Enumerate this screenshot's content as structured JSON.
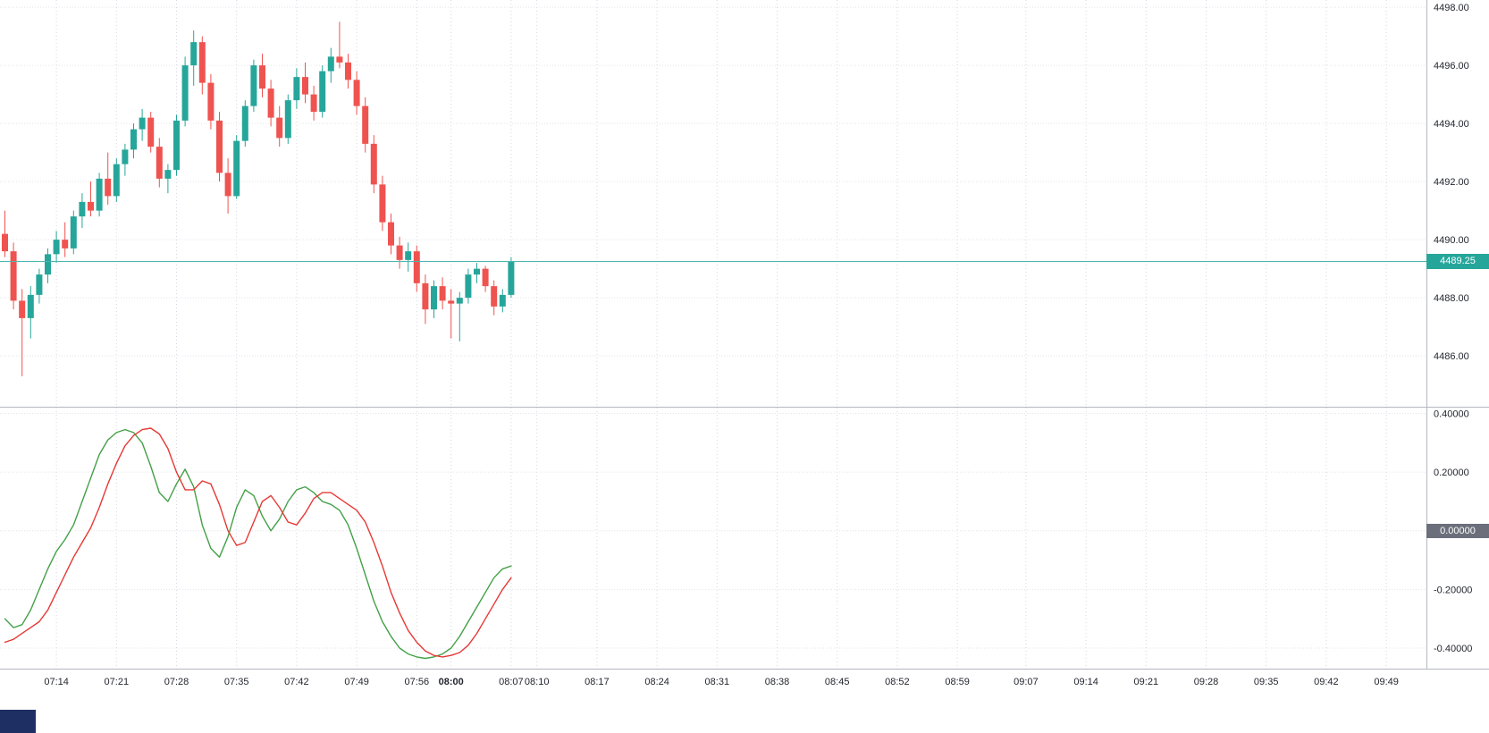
{
  "colors": {
    "up_candle": "#26a69a",
    "down_candle": "#ef5350",
    "fast_line": "#43a047",
    "slow_line": "#e53935",
    "last_price_line": "#4db6ac",
    "last_price_label_bg": "#26a69a",
    "zero_label_bg": "#6b6f7b",
    "grid_line_h": "#e2e5ec",
    "grid_line_v": "#d5d8e2",
    "separator": "#b4b7c1",
    "axis_text": "#23262f"
  },
  "labels": {
    "last_price": "4489.25",
    "zero_level": "0.00000"
  },
  "price_axis": {
    "values": [
      4498,
      4496,
      4494,
      4492,
      4490,
      4488,
      4486
    ],
    "labels": [
      "4498.00",
      "4496.00",
      "4494.00",
      "4492.00",
      "4490.00",
      "4488.00",
      "4486.00"
    ]
  },
  "indicator_axis": {
    "values": [
      0.4,
      0.2,
      0.0,
      -0.2,
      -0.4
    ],
    "labels": [
      "0.40000",
      "0.20000",
      "0.00000",
      "-0.20000",
      "-0.40000"
    ]
  },
  "time_axis": {
    "ticks": [
      {
        "label": "07:14",
        "bold": false
      },
      {
        "label": "07:21",
        "bold": false
      },
      {
        "label": "07:28",
        "bold": false
      },
      {
        "label": "07:35",
        "bold": false
      },
      {
        "label": "07:42",
        "bold": false
      },
      {
        "label": "07:49",
        "bold": false
      },
      {
        "label": "07:56",
        "bold": false
      },
      {
        "label": "08:00",
        "bold": true
      },
      {
        "label": "08:07",
        "bold": false
      },
      {
        "label": "08:10",
        "bold": false
      },
      {
        "label": "08:17",
        "bold": false
      },
      {
        "label": "08:24",
        "bold": false
      },
      {
        "label": "08:31",
        "bold": false
      },
      {
        "label": "08:38",
        "bold": false
      },
      {
        "label": "08:45",
        "bold": false
      },
      {
        "label": "08:52",
        "bold": false
      },
      {
        "label": "08:59",
        "bold": false
      },
      {
        "label": "09:07",
        "bold": false
      },
      {
        "label": "09:14",
        "bold": false
      },
      {
        "label": "09:21",
        "bold": false
      },
      {
        "label": "09:28",
        "bold": false
      },
      {
        "label": "09:35",
        "bold": false
      },
      {
        "label": "09:42",
        "bold": false
      },
      {
        "label": "09:49",
        "bold": false
      }
    ]
  },
  "chart_data": [
    {
      "type": "candlestick",
      "interval": "1m",
      "ylim": [
        4484.25,
        4498.25
      ],
      "y_ticks": [
        4486,
        4488,
        4490,
        4492,
        4494,
        4496,
        4498
      ],
      "last_price": 4489.25,
      "x": [
        "07:08",
        "07:09",
        "07:10",
        "07:11",
        "07:12",
        "07:13",
        "07:14",
        "07:15",
        "07:16",
        "07:17",
        "07:18",
        "07:19",
        "07:20",
        "07:21",
        "07:22",
        "07:23",
        "07:24",
        "07:25",
        "07:26",
        "07:27",
        "07:28",
        "07:29",
        "07:30",
        "07:31",
        "07:32",
        "07:33",
        "07:34",
        "07:35",
        "07:36",
        "07:37",
        "07:38",
        "07:39",
        "07:40",
        "07:41",
        "07:42",
        "07:43",
        "07:44",
        "07:45",
        "07:46",
        "07:47",
        "07:48",
        "07:49",
        "07:50",
        "07:51",
        "07:52",
        "07:53",
        "07:54",
        "07:55",
        "07:56",
        "07:57",
        "07:58",
        "07:59",
        "08:00",
        "08:01",
        "08:02",
        "08:03",
        "08:04",
        "08:05",
        "08:06",
        "08:07"
      ],
      "open": [
        4490.2,
        4489.6,
        4487.9,
        4487.3,
        4488.1,
        4488.8,
        4489.5,
        4490.0,
        4489.7,
        4490.8,
        4491.3,
        4491.0,
        4492.1,
        4491.5,
        4492.6,
        4493.1,
        4493.8,
        4494.2,
        4493.2,
        4492.1,
        4492.4,
        4494.1,
        4496.0,
        4496.8,
        4495.4,
        4494.1,
        4492.3,
        4491.5,
        4493.4,
        4494.6,
        4496.0,
        4495.2,
        4494.2,
        4493.5,
        4494.8,
        4495.6,
        4495.0,
        4494.4,
        4495.8,
        4496.3,
        4496.1,
        4495.5,
        4494.6,
        4493.3,
        4491.9,
        4490.6,
        4489.8,
        4489.3,
        4489.6,
        4488.5,
        4487.6,
        4488.4,
        4487.9,
        4487.8,
        4488.0,
        4488.8,
        4489.0,
        4488.4,
        4487.7,
        4488.1
      ],
      "high": [
        4491.0,
        4489.9,
        4488.3,
        4488.4,
        4489.0,
        4489.7,
        4490.3,
        4490.6,
        4491.0,
        4491.6,
        4492.0,
        4492.3,
        4493.0,
        4492.8,
        4493.3,
        4494.0,
        4494.5,
        4494.4,
        4493.5,
        4492.6,
        4494.3,
        4496.3,
        4497.2,
        4497.0,
        4495.7,
        4494.4,
        4492.8,
        4493.6,
        4494.8,
        4496.2,
        4496.4,
        4495.5,
        4494.6,
        4495.0,
        4495.9,
        4496.1,
        4495.3,
        4496.0,
        4496.6,
        4497.5,
        4496.4,
        4495.8,
        4494.9,
        4493.6,
        4492.2,
        4490.9,
        4490.1,
        4489.9,
        4489.8,
        4488.8,
        4488.6,
        4488.7,
        4488.3,
        4488.2,
        4489.0,
        4489.2,
        4489.1,
        4488.6,
        4488.3,
        4489.4
      ],
      "low": [
        4489.4,
        4487.6,
        4485.3,
        4486.6,
        4487.8,
        4488.5,
        4489.2,
        4489.4,
        4489.5,
        4490.4,
        4490.8,
        4490.8,
        4491.2,
        4491.3,
        4492.2,
        4492.8,
        4493.4,
        4493.0,
        4491.8,
        4491.6,
        4492.2,
        4493.9,
        4495.3,
        4495.0,
        4493.8,
        4492.0,
        4490.9,
        4491.4,
        4493.2,
        4494.4,
        4494.9,
        4493.9,
        4493.2,
        4493.3,
        4494.5,
        4494.7,
        4494.1,
        4494.2,
        4495.4,
        4495.9,
        4495.2,
        4494.3,
        4493.0,
        4491.6,
        4490.3,
        4489.5,
        4489.0,
        4488.9,
        4488.2,
        4487.1,
        4487.3,
        4487.6,
        4486.6,
        4486.5,
        4487.8,
        4488.5,
        4488.2,
        4487.4,
        4487.5,
        4488.0
      ],
      "close": [
        4489.6,
        4487.9,
        4487.3,
        4488.1,
        4488.8,
        4489.5,
        4490.0,
        4489.7,
        4490.8,
        4491.3,
        4491.0,
        4492.1,
        4491.5,
        4492.6,
        4493.1,
        4493.8,
        4494.2,
        4493.2,
        4492.1,
        4492.4,
        4494.1,
        4496.0,
        4496.8,
        4495.4,
        4494.1,
        4492.3,
        4491.5,
        4493.4,
        4494.6,
        4496.0,
        4495.2,
        4494.2,
        4493.5,
        4494.8,
        4495.6,
        4495.0,
        4494.4,
        4495.8,
        4496.3,
        4496.1,
        4495.5,
        4494.6,
        4493.3,
        4491.9,
        4490.6,
        4489.8,
        4489.3,
        4489.6,
        4488.5,
        4487.6,
        4488.4,
        4487.9,
        4487.8,
        4488.0,
        4488.8,
        4489.0,
        4488.4,
        4487.7,
        4488.1,
        4489.25
      ]
    },
    {
      "type": "line",
      "x_same_as_candles": true,
      "ylim": [
        -0.47,
        0.42
      ],
      "y_ticks": [
        0.4,
        0.2,
        0.0,
        -0.2,
        -0.4
      ],
      "zero_line": 0,
      "series": [
        {
          "name": "oscillator-fast",
          "color_key": "fast_line",
          "values": [
            -0.3,
            -0.33,
            -0.32,
            -0.27,
            -0.2,
            -0.13,
            -0.07,
            -0.03,
            0.02,
            0.1,
            0.18,
            0.26,
            0.31,
            0.335,
            0.345,
            0.335,
            0.3,
            0.22,
            0.13,
            0.1,
            0.16,
            0.21,
            0.15,
            0.02,
            -0.06,
            -0.09,
            -0.02,
            0.08,
            0.14,
            0.12,
            0.05,
            0.0,
            0.04,
            0.1,
            0.14,
            0.15,
            0.13,
            0.1,
            0.09,
            0.07,
            0.02,
            -0.06,
            -0.15,
            -0.24,
            -0.31,
            -0.36,
            -0.4,
            -0.42,
            -0.43,
            -0.435,
            -0.43,
            -0.42,
            -0.4,
            -0.36,
            -0.31,
            -0.26,
            -0.21,
            -0.16,
            -0.13,
            -0.12
          ]
        },
        {
          "name": "oscillator-slow",
          "color_key": "slow_line",
          "values": [
            -0.38,
            -0.37,
            -0.35,
            -0.33,
            -0.31,
            -0.27,
            -0.21,
            -0.15,
            -0.09,
            -0.04,
            0.01,
            0.08,
            0.16,
            0.23,
            0.29,
            0.325,
            0.345,
            0.35,
            0.33,
            0.28,
            0.2,
            0.14,
            0.14,
            0.17,
            0.16,
            0.09,
            0.0,
            -0.05,
            -0.04,
            0.03,
            0.1,
            0.12,
            0.08,
            0.03,
            0.02,
            0.06,
            0.11,
            0.13,
            0.13,
            0.11,
            0.09,
            0.07,
            0.03,
            -0.04,
            -0.12,
            -0.21,
            -0.28,
            -0.34,
            -0.38,
            -0.41,
            -0.425,
            -0.43,
            -0.425,
            -0.415,
            -0.39,
            -0.35,
            -0.3,
            -0.25,
            -0.2,
            -0.16
          ]
        }
      ]
    }
  ]
}
